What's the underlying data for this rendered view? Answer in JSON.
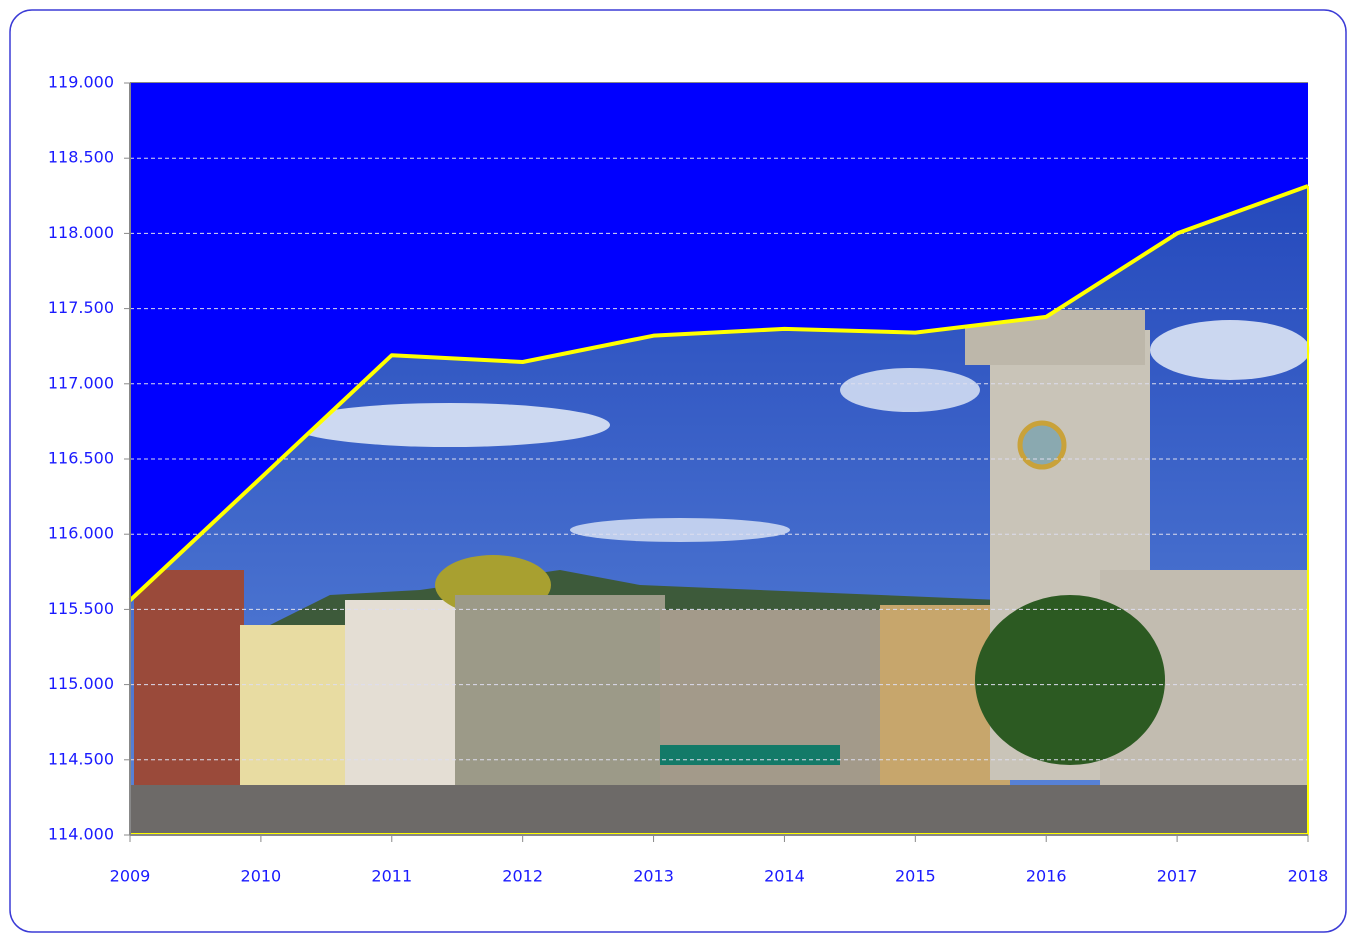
{
  "chart_data": {
    "type": "line",
    "x": [
      2009,
      2010,
      2011,
      2012,
      2013,
      2014,
      2015,
      2016,
      2017,
      2018
    ],
    "values": [
      115560,
      116375,
      117190,
      117145,
      117320,
      117365,
      117340,
      117445,
      118000,
      118315
    ],
    "color": "#ffff00",
    "fill_above_color": "#0000ff",
    "xlim": [
      2009,
      2018
    ],
    "xticks": [
      2009,
      2010,
      2011,
      2012,
      2013,
      2014,
      2015,
      2016,
      2017,
      2018
    ],
    "ylim": [
      114000,
      119000
    ],
    "yticks": [
      {
        "value": 114000,
        "label": "114.000"
      },
      {
        "value": 114500,
        "label": "114.500"
      },
      {
        "value": 115000,
        "label": "115.000"
      },
      {
        "value": 115500,
        "label": "115.500"
      },
      {
        "value": 116000,
        "label": "116.000"
      },
      {
        "value": 116500,
        "label": "116.500"
      },
      {
        "value": 117000,
        "label": "117.000"
      },
      {
        "value": 117500,
        "label": "117.500"
      },
      {
        "value": 118000,
        "label": "118.000"
      },
      {
        "value": 118500,
        "label": "118.500"
      },
      {
        "value": 119000,
        "label": "119.000"
      }
    ],
    "grid": true
  }
}
